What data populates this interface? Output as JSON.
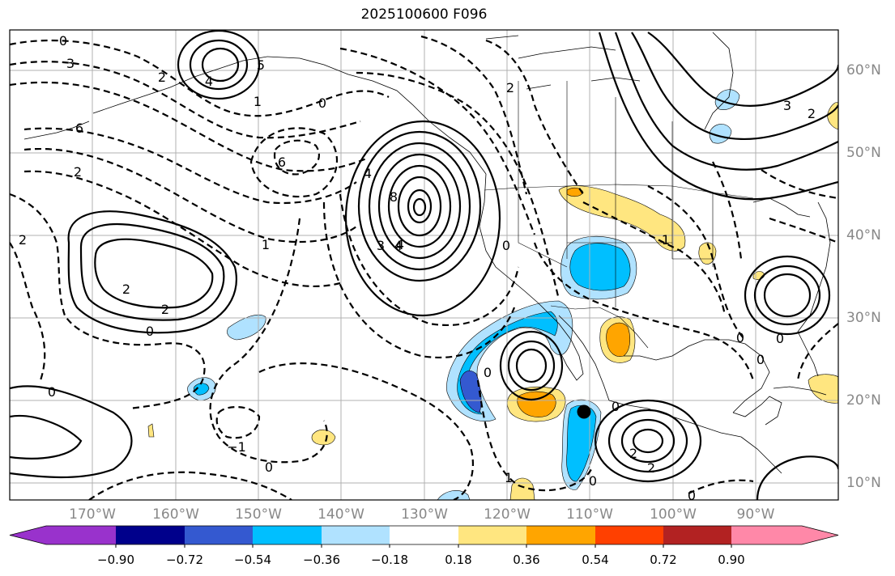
{
  "title": "2025100600 F096",
  "lon_labels": [
    "170°W",
    "160°W",
    "150°W",
    "140°W",
    "130°W",
    "120°W",
    "110°W",
    "100°W",
    "90°W"
  ],
  "lat_labels": [
    "60°N",
    "50°N",
    "40°N",
    "30°N",
    "20°N",
    "10°N"
  ],
  "colorbar": {
    "colors": [
      "#9932cc",
      "#00008b",
      "#3459d0",
      "#00bfff",
      "#b0e2ff",
      "#ffffff",
      "#ffe680",
      "#ffa500",
      "#ff4000",
      "#b22222",
      "#ff88a8"
    ],
    "tick_labels": [
      "−0.90",
      "−0.72",
      "−0.54",
      "−0.36",
      "−0.18",
      "0.18",
      "0.36",
      "0.54",
      "0.72",
      "0.90"
    ]
  },
  "contour_labels": [
    "0",
    "3",
    "2",
    "4",
    "5",
    "6",
    "8",
    "1",
    "2",
    "2",
    "0",
    "6",
    "4",
    "2",
    "1",
    "3",
    "4",
    "4",
    "0",
    "0",
    "0",
    "1",
    "2",
    "2",
    "0",
    "−1",
    "0",
    "0",
    "2",
    "2",
    "3",
    "2",
    "0",
    "0",
    "0",
    "0",
    "1",
    "0"
  ],
  "station_marker": {
    "lon": -111,
    "lat": 18.5
  }
}
